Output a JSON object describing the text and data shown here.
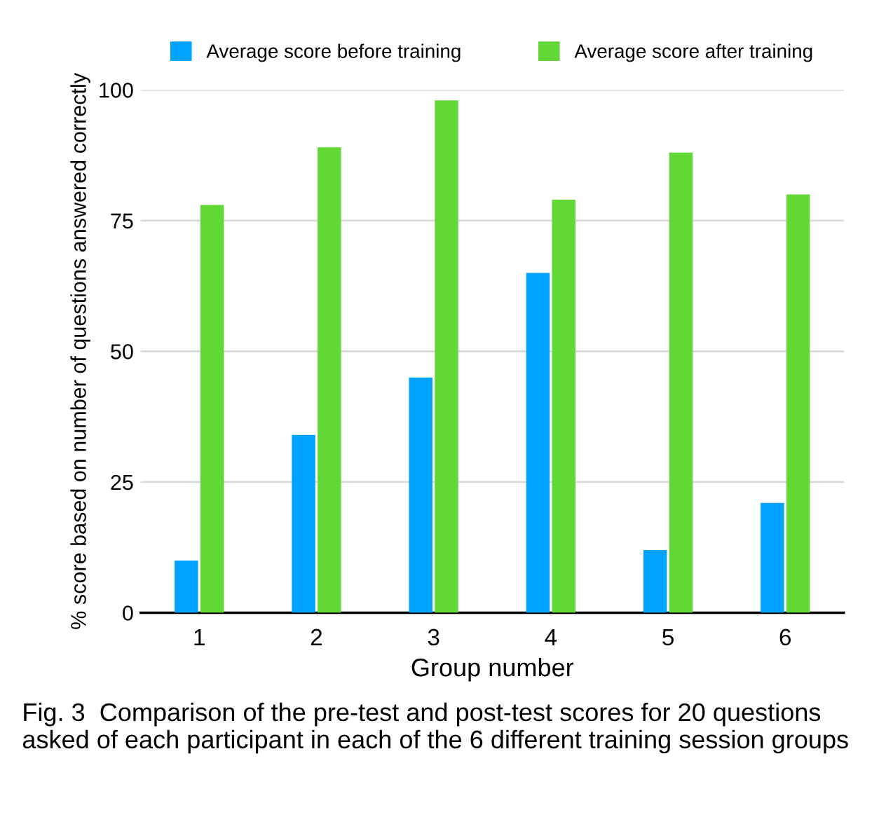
{
  "chart_data": {
    "type": "bar",
    "xlabel": "Group number",
    "ylabel": "% score based on number of questions answered correctly",
    "categories": [
      "1",
      "2",
      "3",
      "4",
      "5",
      "6"
    ],
    "series": [
      {
        "name": "Average score before training",
        "color": "#00a2ff",
        "values": [
          10,
          34,
          45,
          65,
          12,
          21
        ]
      },
      {
        "name": "Average score after training",
        "color": "#61d836",
        "values": [
          78,
          89,
          98,
          79,
          88,
          80
        ]
      }
    ],
    "ylim": [
      0,
      100
    ],
    "yticks": [
      0,
      25,
      50,
      75,
      100
    ],
    "grid": "y",
    "legend": "top",
    "annotations": [
      "Fig. 3  Comparison of the pre-test and post-test scores for 20 questions asked of each participant in each of the 6 different training session groups"
    ]
  }
}
